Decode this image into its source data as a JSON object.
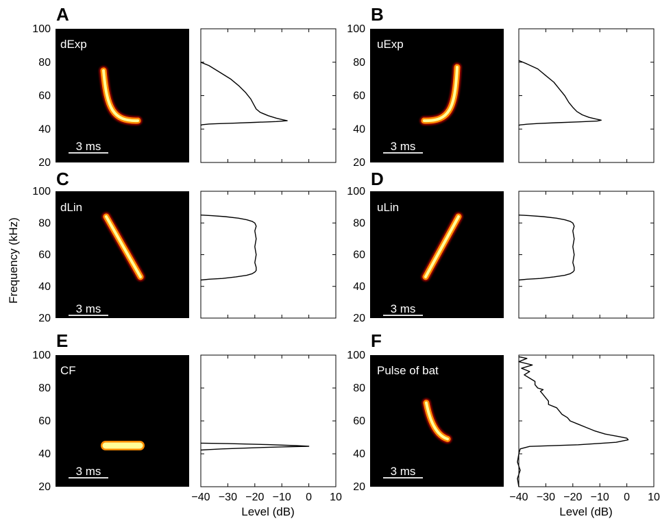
{
  "figure": {
    "ylabel": "Frequency (kHz)",
    "xlabel": "Level (dB)",
    "y_ticks": [
      "20",
      "40",
      "60",
      "80",
      "100"
    ],
    "x_ticks": [
      "−40",
      "−30",
      "−20",
      "−10",
      "0",
      "10"
    ]
  },
  "colors": {
    "spectrogram_bg": "#000000",
    "heat_hot": "#ffff99",
    "heat_mid": "#ff8c00",
    "heat_low": "#b30000",
    "label_text": "#ffffff",
    "line": "#000000"
  },
  "chart_data": [
    {
      "panel": "A",
      "label": "dExp",
      "scale_bar": "3 ms",
      "type": "line",
      "sweep": {
        "kind": "exp-down",
        "f_start": 75,
        "f_end": 45
      },
      "spectrum": {
        "xlim": [
          -40,
          10
        ],
        "ylim": [
          20,
          100
        ],
        "freq": [
          80,
          78,
          74,
          70,
          66,
          62,
          58,
          55,
          52,
          50,
          48,
          46.5,
          45.5,
          45,
          44.5,
          44,
          43.5,
          43.2,
          43,
          42.6,
          42.2
        ],
        "level": [
          -40,
          -37,
          -33,
          -29,
          -26,
          -23.5,
          -21.5,
          -20.5,
          -19.5,
          -18,
          -15,
          -12,
          -9.5,
          -8,
          -12,
          -20,
          -28,
          -34,
          -37,
          -39.5,
          -40
        ]
      }
    },
    {
      "panel": "B",
      "label": "uExp",
      "scale_bar": "3 ms",
      "type": "line",
      "sweep": {
        "kind": "exp-up",
        "f_start": 45,
        "f_end": 77
      },
      "spectrum": {
        "xlim": [
          -40,
          10
        ],
        "ylim": [
          20,
          100
        ],
        "freq": [
          81,
          79,
          76,
          72,
          68,
          64,
          60,
          56,
          53,
          50.5,
          48.5,
          47,
          46,
          45.3,
          44.8,
          44.3,
          43.8,
          43.3,
          42.9,
          42.5,
          42.2
        ],
        "level": [
          -40,
          -37,
          -33,
          -30,
          -27,
          -25,
          -23,
          -21.5,
          -20,
          -18.5,
          -16.5,
          -14,
          -11.5,
          -9.5,
          -11,
          -18,
          -26,
          -33,
          -37,
          -39.5,
          -40
        ]
      }
    },
    {
      "panel": "C",
      "label": "dLin",
      "scale_bar": "3 ms",
      "type": "line",
      "sweep": {
        "kind": "lin-down",
        "f_start": 84,
        "f_end": 46
      },
      "spectrum": {
        "xlim": [
          -40,
          10
        ],
        "ylim": [
          20,
          100
        ],
        "freq": [
          85,
          84.6,
          84,
          83,
          82,
          81,
          80,
          78,
          75,
          70,
          65,
          60,
          55,
          52,
          50,
          49,
          48,
          47,
          46,
          45,
          44.5,
          44
        ],
        "level": [
          -40,
          -36,
          -31,
          -26,
          -23,
          -21,
          -20,
          -19.5,
          -20,
          -19.5,
          -20,
          -19.5,
          -20,
          -19.5,
          -19.5,
          -20,
          -21,
          -23,
          -27,
          -32,
          -37,
          -40
        ]
      }
    },
    {
      "panel": "D",
      "label": "uLin",
      "scale_bar": "3 ms",
      "type": "line",
      "sweep": {
        "kind": "lin-up",
        "f_start": 46,
        "f_end": 84
      },
      "spectrum": {
        "xlim": [
          -40,
          10
        ],
        "ylim": [
          20,
          100
        ],
        "freq": [
          85,
          84.6,
          84,
          83,
          82,
          81,
          80,
          78,
          75,
          70,
          65,
          60,
          55,
          52,
          50,
          49,
          48,
          47,
          46,
          45,
          44.5,
          44
        ],
        "level": [
          -40,
          -36,
          -31,
          -26,
          -23,
          -21,
          -20,
          -19.5,
          -20,
          -19.5,
          -20,
          -19.5,
          -20,
          -19.5,
          -19.5,
          -20,
          -21,
          -23,
          -27,
          -32,
          -37,
          -40
        ]
      }
    },
    {
      "panel": "E",
      "label": "CF",
      "scale_bar": "3 ms",
      "type": "line",
      "sweep": {
        "kind": "cf",
        "f_start": 45,
        "f_end": 45
      },
      "spectrum": {
        "xlim": [
          -40,
          10
        ],
        "ylim": [
          20,
          100
        ],
        "freq": [
          46.5,
          46.2,
          45.6,
          45,
          44.6,
          44.2,
          43.6,
          43,
          42.6,
          42.3
        ],
        "level": [
          -40,
          -30,
          -15,
          -5,
          0,
          -10,
          -22,
          -32,
          -37,
          -40
        ]
      }
    },
    {
      "panel": "F",
      "label": "Pulse of bat",
      "scale_bar": "3 ms",
      "type": "line",
      "sweep": {
        "kind": "bat",
        "f_start": 71,
        "f_end": 49
      },
      "spectrum": {
        "xlim": [
          -40,
          10
        ],
        "ylim": [
          20,
          100
        ],
        "freq": [
          20,
          25,
          30,
          35,
          40,
          43,
          44.5,
          45.5,
          47,
          48.5,
          49.5,
          50.5,
          52,
          54,
          56,
          58,
          60,
          62,
          64,
          66,
          68,
          70,
          72,
          74,
          76,
          78,
          79,
          80,
          82,
          84,
          86,
          88,
          90,
          92,
          94,
          96,
          98,
          99
        ],
        "level": [
          -40,
          -40.5,
          -39.5,
          -40.5,
          -40,
          -39.5,
          -36,
          -18,
          -4,
          0.5,
          0,
          -3,
          -8,
          -12,
          -15,
          -18,
          -21,
          -22,
          -24,
          -25,
          -26,
          -29,
          -29,
          -30,
          -31,
          -32,
          -31,
          -33,
          -34,
          -34,
          -36,
          -38,
          -36,
          -39,
          -35,
          -40,
          -37,
          -40
        ]
      }
    }
  ]
}
